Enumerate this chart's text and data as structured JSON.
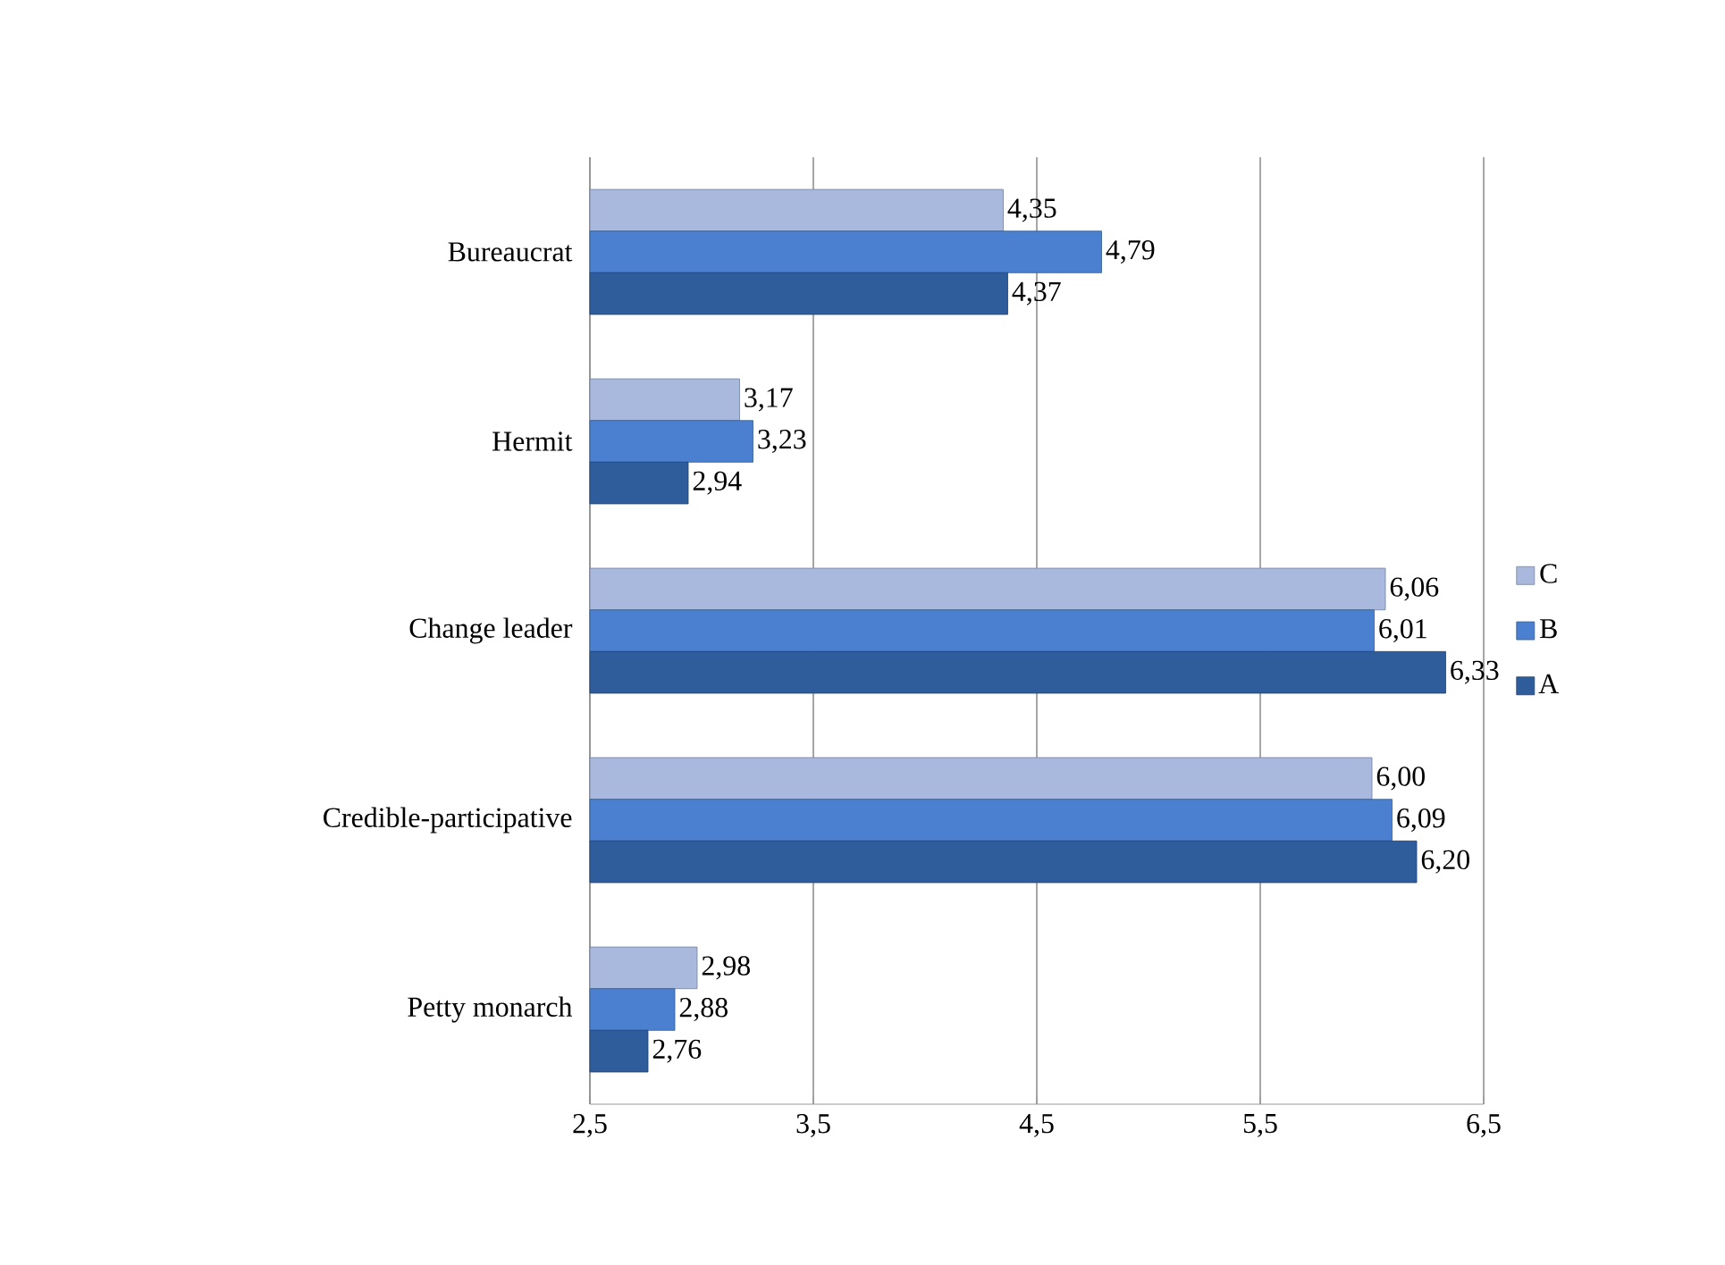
{
  "chart_data": {
    "type": "bar",
    "orientation": "horizontal",
    "categories": [
      "Bureaucrat",
      "Hermit",
      "Change leader",
      "Credible-participative",
      "Petty monarch"
    ],
    "series": [
      {
        "name": "C",
        "color": "#a9b9de",
        "values": [
          4.35,
          3.17,
          6.06,
          6.0,
          2.98
        ],
        "value_labels": [
          "4,35",
          "3,17",
          "6,06",
          "6,00",
          "2,98"
        ]
      },
      {
        "name": "B",
        "color": "#4a80cf",
        "values": [
          4.79,
          3.23,
          6.01,
          6.09,
          2.88
        ],
        "value_labels": [
          "4,79",
          "3,23",
          "6,01",
          "6,09",
          "2,88"
        ]
      },
      {
        "name": "A",
        "color": "#2f5d9c",
        "values": [
          4.37,
          2.94,
          6.33,
          6.2,
          2.76
        ],
        "value_labels": [
          "4,37",
          "2,94",
          "6,33",
          "6,20",
          "2,76"
        ]
      }
    ],
    "xlim": [
      2.5,
      6.5
    ],
    "xticks": [
      {
        "value": 2.5,
        "label": "2,5"
      },
      {
        "value": 3.5,
        "label": "3,5"
      },
      {
        "value": 4.5,
        "label": "4,5"
      },
      {
        "value": 5.5,
        "label": "5,5"
      },
      {
        "value": 6.5,
        "label": "6,5"
      }
    ],
    "grid": "x",
    "legend": "right"
  }
}
